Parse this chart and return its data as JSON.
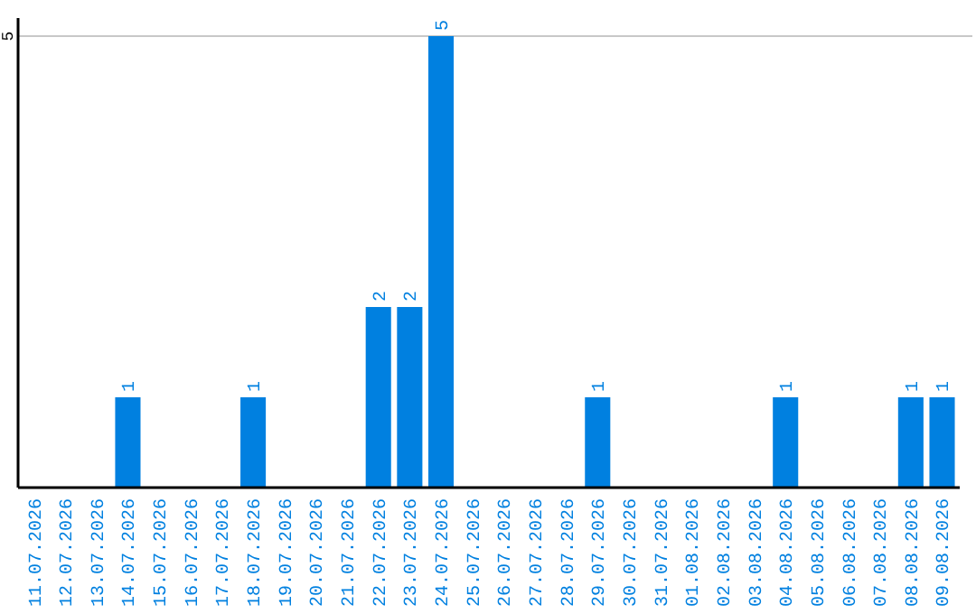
{
  "chart_data": {
    "type": "bar",
    "categories": [
      "11.07.2026",
      "12.07.2026",
      "13.07.2026",
      "14.07.2026",
      "15.07.2026",
      "16.07.2026",
      "17.07.2026",
      "18.07.2026",
      "19.07.2026",
      "20.07.2026",
      "21.07.2026",
      "22.07.2026",
      "23.07.2026",
      "24.07.2026",
      "25.07.2026",
      "26.07.2026",
      "27.07.2026",
      "28.07.2026",
      "29.07.2026",
      "30.07.2026",
      "31.07.2026",
      "01.08.2026",
      "02.08.2026",
      "03.08.2026",
      "04.08.2026",
      "05.08.2026",
      "06.08.2026",
      "07.08.2026",
      "08.08.2026",
      "09.08.2026"
    ],
    "values": [
      0,
      0,
      0,
      1,
      0,
      0,
      0,
      1,
      0,
      0,
      0,
      2,
      2,
      5,
      0,
      0,
      0,
      0,
      1,
      0,
      0,
      0,
      0,
      0,
      1,
      0,
      0,
      0,
      1,
      1
    ],
    "value_labels": [
      null,
      null,
      null,
      "1",
      null,
      null,
      null,
      "1",
      null,
      null,
      null,
      "2",
      "2",
      "5",
      null,
      null,
      null,
      null,
      "1",
      null,
      null,
      null,
      null,
      null,
      "1",
      null,
      null,
      null,
      "1",
      "1"
    ],
    "color": "#0080e0",
    "ylim": [
      0,
      5.2
    ],
    "yticks": [
      5
    ],
    "grid": "y"
  }
}
